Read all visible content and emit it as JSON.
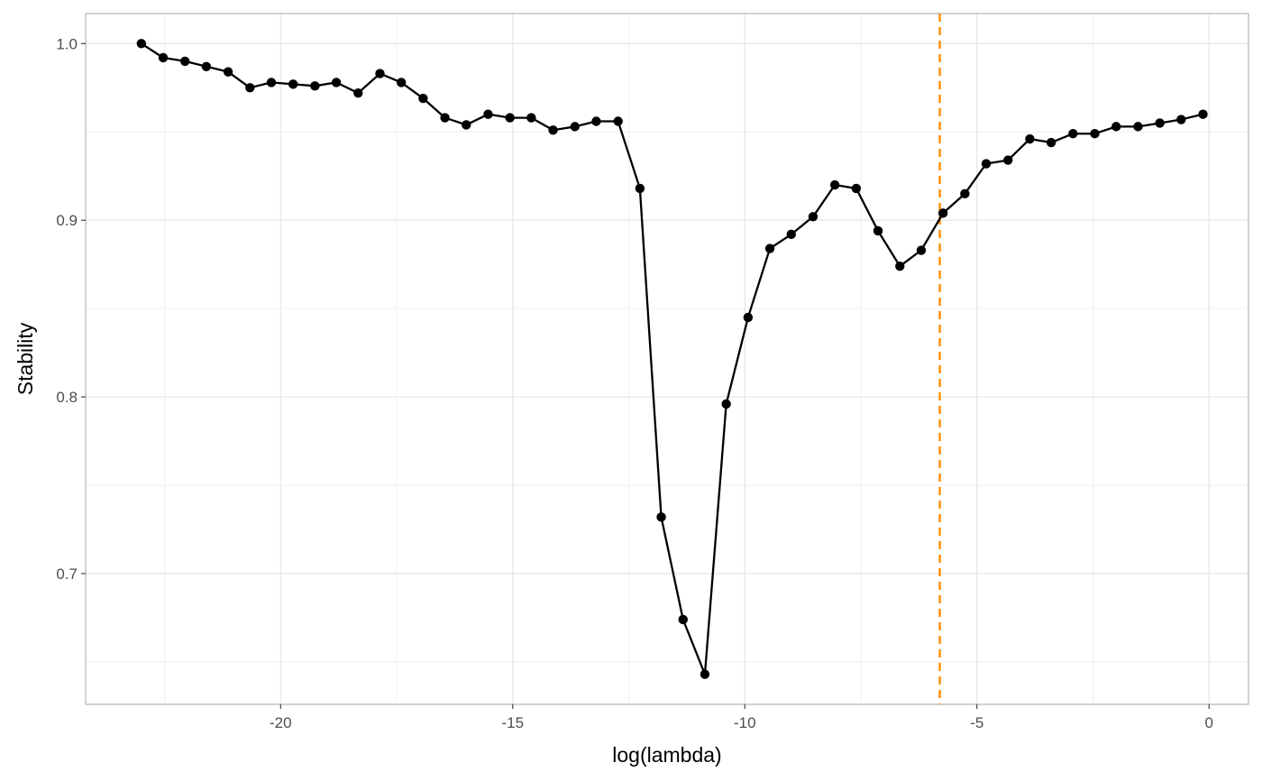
{
  "chart_data": {
    "type": "line",
    "title": "",
    "xlabel": "log(lambda)",
    "ylabel": "Stability",
    "xlim": [
      -24.2,
      0.85
    ],
    "ylim": [
      0.626,
      1.017
    ],
    "x_ticks": [
      -20,
      -15,
      -10,
      -5,
      0
    ],
    "x_tick_labels": [
      "-20",
      "-15",
      "-10",
      "-5",
      "0"
    ],
    "y_ticks": [
      0.7,
      0.8,
      0.9,
      1.0
    ],
    "y_tick_labels": [
      "0.7",
      "0.8",
      "0.9",
      "1.0"
    ],
    "x_minor_ticks": [
      -22.5,
      -17.5,
      -12.5,
      -7.5,
      -2.5
    ],
    "y_minor_ticks": [
      0.65,
      0.75,
      0.85,
      0.95
    ],
    "grid": true,
    "legend": "none",
    "series": [
      {
        "color": "#000000",
        "points": [
          [
            -23.0,
            1.0
          ],
          [
            -22.53,
            0.992
          ],
          [
            -22.06,
            0.99
          ],
          [
            -21.6,
            0.987
          ],
          [
            -21.13,
            0.984
          ],
          [
            -20.66,
            0.975
          ],
          [
            -20.2,
            0.978
          ],
          [
            -19.73,
            0.977
          ],
          [
            -19.26,
            0.976
          ],
          [
            -18.8,
            0.978
          ],
          [
            -18.33,
            0.972
          ],
          [
            -17.86,
            0.983
          ],
          [
            -17.4,
            0.978
          ],
          [
            -16.93,
            0.969
          ],
          [
            -16.46,
            0.958
          ],
          [
            -16.0,
            0.954
          ],
          [
            -15.53,
            0.96
          ],
          [
            -15.06,
            0.958
          ],
          [
            -14.6,
            0.958
          ],
          [
            -14.13,
            0.951
          ],
          [
            -13.66,
            0.953
          ],
          [
            -13.2,
            0.956
          ],
          [
            -12.73,
            0.956
          ],
          [
            -12.26,
            0.918
          ],
          [
            -11.8,
            0.732
          ],
          [
            -11.33,
            0.674
          ],
          [
            -10.86,
            0.643
          ],
          [
            -10.4,
            0.796
          ],
          [
            -9.93,
            0.845
          ],
          [
            -9.46,
            0.884
          ],
          [
            -9.0,
            0.892
          ],
          [
            -8.53,
            0.902
          ],
          [
            -8.06,
            0.92
          ],
          [
            -7.6,
            0.918
          ],
          [
            -7.13,
            0.894
          ],
          [
            -6.66,
            0.874
          ],
          [
            -6.2,
            0.883
          ],
          [
            -5.73,
            0.904
          ],
          [
            -5.26,
            0.915
          ],
          [
            -4.8,
            0.932
          ],
          [
            -4.33,
            0.934
          ],
          [
            -3.86,
            0.946
          ],
          [
            -3.4,
            0.944
          ],
          [
            -2.93,
            0.949
          ],
          [
            -2.46,
            0.949
          ],
          [
            -2.0,
            0.953
          ],
          [
            -1.53,
            0.953
          ],
          [
            -1.06,
            0.955
          ],
          [
            -0.6,
            0.957
          ],
          [
            -0.13,
            0.96
          ]
        ]
      }
    ],
    "reference_line": {
      "orientation": "vertical",
      "x": -5.8,
      "color": "#ff8c00",
      "style": "dashed"
    }
  }
}
